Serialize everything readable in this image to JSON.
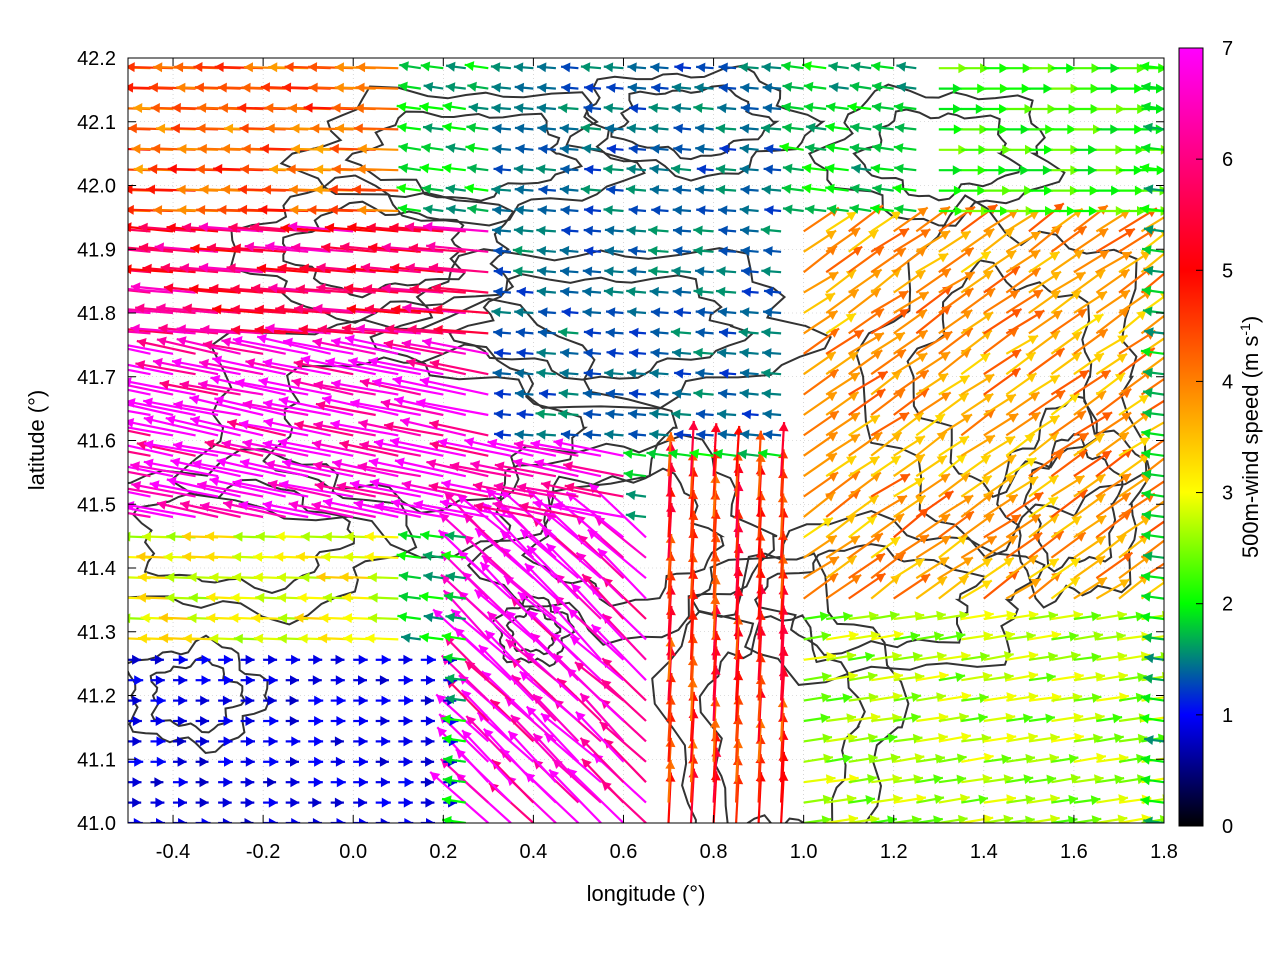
{
  "chart_data": {
    "type": "quiver",
    "xlabel": "longitude (°)",
    "ylabel": "latitude (°)",
    "colorbar_label": "500m-wind speed (m s",
    "colorbar_label_sup": "-1",
    "colorbar_label_end": ")",
    "xlim": [
      -0.5,
      1.8
    ],
    "ylim": [
      41.0,
      42.2
    ],
    "cbar_lim": [
      0,
      7
    ],
    "x_ticks": [
      "-0.4",
      "-0.2",
      "0.0",
      "0.2",
      "0.4",
      "0.6",
      "0.8",
      "1.0",
      "1.2",
      "1.4",
      "1.6",
      "1.8"
    ],
    "y_ticks": [
      "41.0",
      "41.1",
      "41.2",
      "41.3",
      "41.4",
      "41.5",
      "41.6",
      "41.7",
      "41.8",
      "41.9",
      "42.0",
      "42.1",
      "42.2"
    ],
    "cbar_ticks": [
      "0",
      "1",
      "2",
      "3",
      "4",
      "5",
      "6",
      "7"
    ],
    "grid": true,
    "colormap": [
      "#000000",
      "#0000ff",
      "#00ff00",
      "#ffff00",
      "#ff8000",
      "#ff0000",
      "#ff00ff"
    ],
    "wind_regions": [
      {
        "lon_min": -0.5,
        "lon_max": 0.1,
        "lat_min": 41.95,
        "lat_max": 42.2,
        "u": -3.5,
        "v": 0.1,
        "speed": 4.3
      },
      {
        "lon_min": -0.5,
        "lon_max": 0.3,
        "lat_min": 41.75,
        "lat_max": 41.95,
        "u": -4.8,
        "v": 0.4,
        "speed": 5.8
      },
      {
        "lon_min": -0.5,
        "lon_max": 0.6,
        "lat_min": 41.45,
        "lat_max": 41.75,
        "u": -6.0,
        "v": 1.2,
        "speed": 7.0
      },
      {
        "lon_min": 0.25,
        "lon_max": 0.75,
        "lat_min": 41.0,
        "lat_max": 41.45,
        "u": -3.8,
        "v": 3.6,
        "speed": 7.0
      },
      {
        "lon_min": -0.5,
        "lon_max": 0.1,
        "lat_min": 41.28,
        "lat_max": 41.45,
        "u": -2.6,
        "v": 0.1,
        "speed": 3.0
      },
      {
        "lon_min": -0.5,
        "lon_max": 0.2,
        "lat_min": 41.0,
        "lat_max": 41.28,
        "u": 0.5,
        "v": 0.0,
        "speed": 0.9
      },
      {
        "lon_min": 0.3,
        "lon_max": 1.0,
        "lat_min": 41.6,
        "lat_max": 42.2,
        "u": -1.2,
        "v": 0.1,
        "speed": 1.4
      },
      {
        "lon_min": 0.7,
        "lon_max": 1.1,
        "lat_min": 41.0,
        "lat_max": 41.55,
        "u": 0.2,
        "v": 3.8,
        "speed": 4.8
      },
      {
        "lon_min": 1.0,
        "lon_max": 1.8,
        "lat_min": 41.0,
        "lat_max": 41.35,
        "u": 2.6,
        "v": 0.4,
        "speed": 2.6
      },
      {
        "lon_min": 1.0,
        "lon_max": 1.8,
        "lat_min": 41.35,
        "lat_max": 41.95,
        "u": 2.6,
        "v": 1.8,
        "speed": 3.8
      },
      {
        "lon_min": 1.3,
        "lon_max": 1.8,
        "lat_min": 41.95,
        "lat_max": 42.2,
        "u": 2.2,
        "v": 0.0,
        "speed": 2.2
      }
    ]
  }
}
